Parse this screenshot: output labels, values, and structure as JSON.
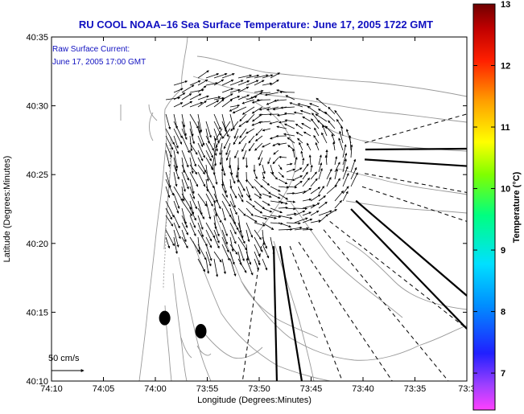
{
  "title": "RU COOL  NOAA–16  Sea Surface Temperature:  June 17, 2005 1722 GMT",
  "annotation": {
    "line1": "Raw Surface Current:",
    "line2": "June 17, 2005 17:00 GMT"
  },
  "scale_label": "50 cm/s",
  "colors": {
    "title": "#1010c0",
    "annotation": "#1010c0",
    "contour": "#999999",
    "frame": "#000000"
  },
  "chart_data": {
    "type": "map",
    "xlabel": "Longitude (Degrees:Minutes)",
    "ylabel": "Latitude (Degrees:Minutes)",
    "x_ticks": [
      "74:10",
      "74:05",
      "74:00",
      "73:55",
      "73:50",
      "73:45",
      "73:40",
      "73:35",
      "73:3"
    ],
    "y_ticks": [
      "40:10",
      "40:15",
      "40:20",
      "40:25",
      "40:30",
      "40:35"
    ],
    "xlim": [
      -74.1667,
      -73.5
    ],
    "ylim": [
      40.1667,
      40.5833
    ],
    "colorbar": {
      "label": "Temperature (°C)",
      "ticks": [
        "13",
        "12",
        "11",
        "10",
        "9",
        "8",
        "7"
      ],
      "range": [
        6.4,
        13
      ],
      "colormap": [
        "#ff40ff",
        "#8040ff",
        "#2020ff",
        "#0090ff",
        "#00e0ff",
        "#00ff80",
        "#80ff00",
        "#ffff00",
        "#ffa000",
        "#ff2000",
        "#c00000",
        "#700000"
      ]
    },
    "markers": [
      {
        "name": "dot-1",
        "lon": -73.985,
        "lat": 40.243
      },
      {
        "name": "dot-2",
        "lon": -73.927,
        "lat": 40.227
      }
    ],
    "radials": [
      {
        "style": "solid",
        "from": [
          -73.663,
          40.447
        ],
        "to": [
          -73.5,
          40.448
        ]
      },
      {
        "style": "solid",
        "from": [
          -73.664,
          40.435
        ],
        "to": [
          -73.5,
          40.427
        ]
      },
      {
        "style": "dashed",
        "from": [
          -73.664,
          40.455
        ],
        "to": [
          -73.5,
          40.49
        ]
      },
      {
        "style": "dashed",
        "from": [
          -73.664,
          40.418
        ],
        "to": [
          -73.5,
          40.395
        ]
      },
      {
        "style": "dashed",
        "from": [
          -73.668,
          40.402
        ],
        "to": [
          -73.5,
          40.36
        ]
      },
      {
        "style": "solid",
        "from": [
          -73.678,
          40.385
        ],
        "to": [
          -73.5,
          40.27
        ]
      },
      {
        "style": "solid",
        "from": [
          -73.686,
          40.375
        ],
        "to": [
          -73.5,
          40.23
        ]
      },
      {
        "style": "dashed",
        "from": [
          -73.72,
          40.36
        ],
        "to": [
          -73.5,
          40.23
        ]
      },
      {
        "style": "dashed",
        "from": [
          -73.73,
          40.35
        ],
        "to": [
          -73.53,
          40.167
        ]
      },
      {
        "style": "dashed",
        "from": [
          -73.77,
          40.335
        ],
        "to": [
          -73.62,
          40.167
        ]
      },
      {
        "style": "dashed",
        "from": [
          -73.784,
          40.33
        ],
        "to": [
          -73.7,
          40.167
        ]
      },
      {
        "style": "solid",
        "from": [
          -73.8,
          40.33
        ],
        "to": [
          -73.765,
          40.167
        ]
      },
      {
        "style": "solid",
        "from": [
          -73.81,
          40.33
        ],
        "to": [
          -73.805,
          40.167
        ]
      },
      {
        "style": "dashed",
        "from": [
          -73.83,
          40.33
        ],
        "to": [
          -73.86,
          40.167
        ]
      }
    ]
  }
}
